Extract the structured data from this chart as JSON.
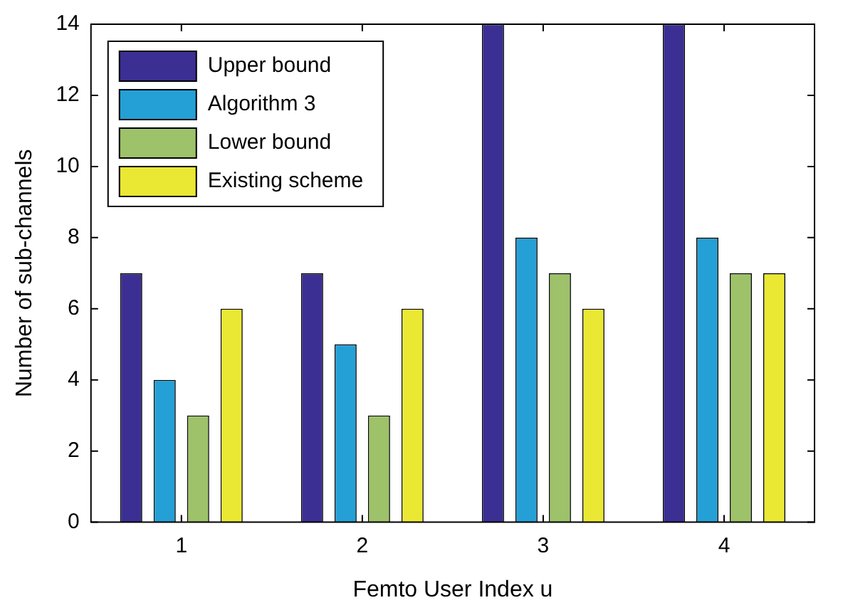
{
  "chart_data": {
    "type": "bar",
    "xlabel": "Femto User Index u",
    "ylabel": "Number of sub-channels",
    "categories": [
      "1",
      "2",
      "3",
      "4"
    ],
    "series": [
      {
        "name": "Upper bound",
        "color": "#3b2f94",
        "values": [
          7,
          7,
          14,
          14
        ]
      },
      {
        "name": "Algorithm 3",
        "color": "#24a0d6",
        "values": [
          4,
          5,
          8,
          8
        ]
      },
      {
        "name": "Lower bound",
        "color": "#9dc26a",
        "values": [
          3,
          3,
          7,
          7
        ]
      },
      {
        "name": "Existing scheme",
        "color": "#ebe833",
        "values": [
          6,
          6,
          6,
          7
        ]
      }
    ],
    "ylim": [
      0,
      14
    ],
    "yticks": [
      0,
      2,
      4,
      6,
      8,
      10,
      12,
      14
    ],
    "grid": false,
    "legend": "top left"
  }
}
